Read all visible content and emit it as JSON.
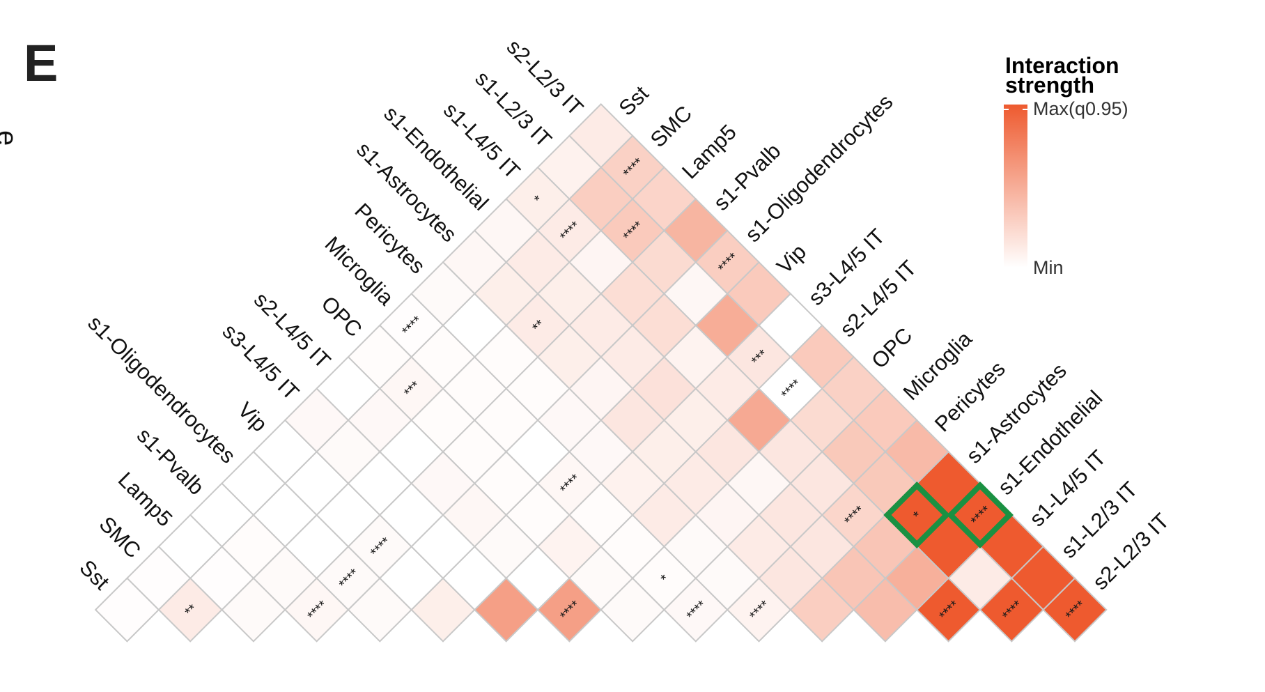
{
  "panel": {
    "letter": "E",
    "clipped_fragment": "e"
  },
  "chart_data": {
    "type": "heatmap",
    "layout": "lower-triangle rotated 45 degrees",
    "title": "",
    "cell_types": [
      "Sst",
      "SMC",
      "Lamp5",
      "s1-Pvalb",
      "s1-Oligodendrocytes",
      "Vip",
      "s3-L4/5 IT",
      "s2-L4/5 IT",
      "OPC",
      "Microglia",
      "Pericytes",
      "s1-Astrocytes",
      "s1-Endothelial",
      "s1-L4/5 IT",
      "s1-L2/3 IT",
      "s2-L2/3 IT"
    ],
    "value_scale": "relative interaction strength, 0 = Min, 1 = Max(q0.95)",
    "colors": {
      "min": "#ffffff",
      "max": "#ee5a2f",
      "grid": "#c8c8c8",
      "highlight": "#1a9142"
    },
    "cells": [
      {
        "i": 0,
        "j": 0,
        "v": 0.01,
        "sig": ""
      },
      {
        "i": 1,
        "j": 1,
        "v": 0.12,
        "sig": "**"
      },
      {
        "i": 2,
        "j": 2,
        "v": 0.03,
        "sig": ""
      },
      {
        "i": 3,
        "j": 3,
        "v": 0.05,
        "sig": "****"
      },
      {
        "i": 4,
        "j": 4,
        "v": 0.03,
        "sig": ""
      },
      {
        "i": 5,
        "j": 5,
        "v": 0.1,
        "sig": ""
      },
      {
        "i": 6,
        "j": 6,
        "v": 0.58,
        "sig": ""
      },
      {
        "i": 7,
        "j": 7,
        "v": 0.58,
        "sig": "****"
      },
      {
        "i": 8,
        "j": 8,
        "v": 0.03,
        "sig": ""
      },
      {
        "i": 9,
        "j": 9,
        "v": 0.04,
        "sig": "****"
      },
      {
        "i": 10,
        "j": 10,
        "v": 0.07,
        "sig": "****"
      },
      {
        "i": 11,
        "j": 11,
        "v": 0.3,
        "sig": ""
      },
      {
        "i": 12,
        "j": 12,
        "v": 0.4,
        "sig": ""
      },
      {
        "i": 13,
        "j": 13,
        "v": 1.0,
        "sig": "****"
      },
      {
        "i": 14,
        "j": 14,
        "v": 1.0,
        "sig": "****"
      },
      {
        "i": 15,
        "j": 15,
        "v": 1.0,
        "sig": "****"
      },
      {
        "i": 0,
        "j": 1,
        "v": 0.01,
        "sig": ""
      },
      {
        "i": 1,
        "j": 2,
        "v": 0.01,
        "sig": ""
      },
      {
        "i": 2,
        "j": 3,
        "v": 0.03,
        "sig": ""
      },
      {
        "i": 3,
        "j": 4,
        "v": 0.03,
        "sig": "****"
      },
      {
        "i": 4,
        "j": 5,
        "v": 0.0,
        "sig": ""
      },
      {
        "i": 5,
        "j": 6,
        "v": 0.0,
        "sig": ""
      },
      {
        "i": 6,
        "j": 7,
        "v": 0.0,
        "sig": ""
      },
      {
        "i": 7,
        "j": 8,
        "v": 0.03,
        "sig": ""
      },
      {
        "i": 8,
        "j": 9,
        "v": 0.02,
        "sig": "*"
      },
      {
        "i": 9,
        "j": 10,
        "v": 0.03,
        "sig": ""
      },
      {
        "i": 10,
        "j": 11,
        "v": 0.15,
        "sig": ""
      },
      {
        "i": 11,
        "j": 12,
        "v": 0.35,
        "sig": ""
      },
      {
        "i": 12,
        "j": 13,
        "v": 0.48,
        "sig": ""
      },
      {
        "i": 13,
        "j": 14,
        "v": 0.12,
        "sig": ""
      },
      {
        "i": 14,
        "j": 15,
        "v": 1.0,
        "sig": ""
      },
      {
        "i": 0,
        "j": 2,
        "v": 0.0,
        "sig": ""
      },
      {
        "i": 1,
        "j": 3,
        "v": 0.02,
        "sig": ""
      },
      {
        "i": 2,
        "j": 4,
        "v": 0.0,
        "sig": ""
      },
      {
        "i": 3,
        "j": 5,
        "v": 0.03,
        "sig": "****"
      },
      {
        "i": 4,
        "j": 6,
        "v": 0.0,
        "sig": ""
      },
      {
        "i": 5,
        "j": 7,
        "v": 0.03,
        "sig": ""
      },
      {
        "i": 6,
        "j": 8,
        "v": 0.07,
        "sig": ""
      },
      {
        "i": 7,
        "j": 9,
        "v": 0.02,
        "sig": ""
      },
      {
        "i": 8,
        "j": 10,
        "v": 0.03,
        "sig": ""
      },
      {
        "i": 9,
        "j": 11,
        "v": 0.12,
        "sig": ""
      },
      {
        "i": 10,
        "j": 12,
        "v": 0.15,
        "sig": ""
      },
      {
        "i": 11,
        "j": 13,
        "v": 0.35,
        "sig": ""
      },
      {
        "i": 12,
        "j": 14,
        "v": 1.0,
        "sig": ""
      },
      {
        "i": 13,
        "j": 15,
        "v": 1.0,
        "sig": ""
      },
      {
        "i": 0,
        "j": 3,
        "v": 0.0,
        "sig": ""
      },
      {
        "i": 1,
        "j": 4,
        "v": 0.0,
        "sig": ""
      },
      {
        "i": 2,
        "j": 5,
        "v": 0.0,
        "sig": ""
      },
      {
        "i": 3,
        "j": 6,
        "v": 0.0,
        "sig": ""
      },
      {
        "i": 4,
        "j": 7,
        "v": 0.05,
        "sig": ""
      },
      {
        "i": 5,
        "j": 8,
        "v": 0.02,
        "sig": ""
      },
      {
        "i": 6,
        "j": 9,
        "v": 0.02,
        "sig": ""
      },
      {
        "i": 7,
        "j": 10,
        "v": 0.12,
        "sig": ""
      },
      {
        "i": 8,
        "j": 11,
        "v": 0.06,
        "sig": ""
      },
      {
        "i": 9,
        "j": 12,
        "v": 0.15,
        "sig": ""
      },
      {
        "i": 10,
        "j": 13,
        "v": 0.25,
        "sig": "****"
      },
      {
        "i": 11,
        "j": 14,
        "v": 1.0,
        "sig": "*",
        "highlight": true
      },
      {
        "i": 12,
        "j": 15,
        "v": 1.0,
        "sig": "****",
        "highlight": true
      },
      {
        "i": 0,
        "j": 4,
        "v": 0.0,
        "sig": ""
      },
      {
        "i": 1,
        "j": 5,
        "v": 0.0,
        "sig": ""
      },
      {
        "i": 2,
        "j": 6,
        "v": 0.0,
        "sig": ""
      },
      {
        "i": 3,
        "j": 7,
        "v": 0.04,
        "sig": ""
      },
      {
        "i": 4,
        "j": 8,
        "v": 0.02,
        "sig": ""
      },
      {
        "i": 5,
        "j": 9,
        "v": 0.05,
        "sig": "****"
      },
      {
        "i": 6,
        "j": 10,
        "v": 0.08,
        "sig": ""
      },
      {
        "i": 7,
        "j": 11,
        "v": 0.12,
        "sig": ""
      },
      {
        "i": 8,
        "j": 12,
        "v": 0.05,
        "sig": ""
      },
      {
        "i": 9,
        "j": 13,
        "v": 0.15,
        "sig": ""
      },
      {
        "i": 10,
        "j": 14,
        "v": 0.33,
        "sig": ""
      },
      {
        "i": 11,
        "j": 15,
        "v": 1.0,
        "sig": ""
      },
      {
        "i": 0,
        "j": 5,
        "v": 0.0,
        "sig": ""
      },
      {
        "i": 1,
        "j": 6,
        "v": 0.03,
        "sig": ""
      },
      {
        "i": 2,
        "j": 7,
        "v": 0.0,
        "sig": ""
      },
      {
        "i": 3,
        "j": 8,
        "v": 0.02,
        "sig": ""
      },
      {
        "i": 4,
        "j": 9,
        "v": 0.0,
        "sig": ""
      },
      {
        "i": 5,
        "j": 10,
        "v": 0.04,
        "sig": ""
      },
      {
        "i": 6,
        "j": 11,
        "v": 0.1,
        "sig": ""
      },
      {
        "i": 7,
        "j": 12,
        "v": 0.15,
        "sig": ""
      },
      {
        "i": 8,
        "j": 13,
        "v": 0.15,
        "sig": ""
      },
      {
        "i": 9,
        "j": 14,
        "v": 0.33,
        "sig": ""
      },
      {
        "i": 10,
        "j": 15,
        "v": 0.42,
        "sig": ""
      },
      {
        "i": 0,
        "j": 6,
        "v": 0.04,
        "sig": ""
      },
      {
        "i": 1,
        "j": 7,
        "v": 0.04,
        "sig": ""
      },
      {
        "i": 2,
        "j": 8,
        "v": 0.02,
        "sig": ""
      },
      {
        "i": 3,
        "j": 9,
        "v": 0.02,
        "sig": ""
      },
      {
        "i": 4,
        "j": 10,
        "v": 0.04,
        "sig": ""
      },
      {
        "i": 5,
        "j": 11,
        "v": 0.15,
        "sig": ""
      },
      {
        "i": 6,
        "j": 12,
        "v": 0.1,
        "sig": ""
      },
      {
        "i": 7,
        "j": 13,
        "v": 0.52,
        "sig": ""
      },
      {
        "i": 8,
        "j": 14,
        "v": 0.22,
        "sig": ""
      },
      {
        "i": 9,
        "j": 15,
        "v": 0.32,
        "sig": ""
      },
      {
        "i": 0,
        "j": 7,
        "v": 0.0,
        "sig": ""
      },
      {
        "i": 1,
        "j": 8,
        "v": 0.05,
        "sig": "***"
      },
      {
        "i": 2,
        "j": 9,
        "v": 0.02,
        "sig": ""
      },
      {
        "i": 3,
        "j": 10,
        "v": 0.02,
        "sig": ""
      },
      {
        "i": 4,
        "j": 11,
        "v": 0.06,
        "sig": ""
      },
      {
        "i": 5,
        "j": 12,
        "v": 0.18,
        "sig": ""
      },
      {
        "i": 6,
        "j": 13,
        "v": 0.12,
        "sig": ""
      },
      {
        "i": 7,
        "j": 14,
        "v": 0.0,
        "sig": "****"
      },
      {
        "i": 8,
        "j": 15,
        "v": 0.28,
        "sig": ""
      },
      {
        "i": 0,
        "j": 8,
        "v": 0.02,
        "sig": ""
      },
      {
        "i": 1,
        "j": 9,
        "v": 0.02,
        "sig": ""
      },
      {
        "i": 2,
        "j": 10,
        "v": 0.02,
        "sig": ""
      },
      {
        "i": 3,
        "j": 11,
        "v": 0.1,
        "sig": ""
      },
      {
        "i": 4,
        "j": 12,
        "v": 0.12,
        "sig": ""
      },
      {
        "i": 5,
        "j": 13,
        "v": 0.07,
        "sig": ""
      },
      {
        "i": 6,
        "j": 14,
        "v": 0.15,
        "sig": "***"
      },
      {
        "i": 7,
        "j": 15,
        "v": 0.32,
        "sig": ""
      },
      {
        "i": 0,
        "j": 9,
        "v": 0.01,
        "sig": "****"
      },
      {
        "i": 1,
        "j": 10,
        "v": 0.0,
        "sig": ""
      },
      {
        "i": 2,
        "j": 11,
        "v": 0.12,
        "sig": "**"
      },
      {
        "i": 3,
        "j": 12,
        "v": 0.12,
        "sig": ""
      },
      {
        "i": 4,
        "j": 13,
        "v": 0.2,
        "sig": ""
      },
      {
        "i": 5,
        "j": 14,
        "v": 0.5,
        "sig": ""
      },
      {
        "i": 6,
        "j": 15,
        "v": 0.0,
        "sig": ""
      },
      {
        "i": 0,
        "j": 10,
        "v": 0.03,
        "sig": ""
      },
      {
        "i": 1,
        "j": 11,
        "v": 0.1,
        "sig": ""
      },
      {
        "i": 2,
        "j": 12,
        "v": 0.1,
        "sig": ""
      },
      {
        "i": 3,
        "j": 13,
        "v": 0.2,
        "sig": ""
      },
      {
        "i": 4,
        "j": 14,
        "v": 0.05,
        "sig": ""
      },
      {
        "i": 5,
        "j": 15,
        "v": 0.32,
        "sig": ""
      },
      {
        "i": 0,
        "j": 11,
        "v": 0.05,
        "sig": ""
      },
      {
        "i": 1,
        "j": 12,
        "v": 0.12,
        "sig": ""
      },
      {
        "i": 2,
        "j": 13,
        "v": 0.06,
        "sig": ""
      },
      {
        "i": 3,
        "j": 14,
        "v": 0.22,
        "sig": ""
      },
      {
        "i": 4,
        "j": 15,
        "v": 0.3,
        "sig": "****"
      },
      {
        "i": 0,
        "j": 12,
        "v": 0.05,
        "sig": ""
      },
      {
        "i": 1,
        "j": 13,
        "v": 0.12,
        "sig": "****"
      },
      {
        "i": 2,
        "j": 14,
        "v": 0.32,
        "sig": "****"
      },
      {
        "i": 3,
        "j": 15,
        "v": 0.45,
        "sig": ""
      },
      {
        "i": 0,
        "j": 13,
        "v": 0.1,
        "sig": "*"
      },
      {
        "i": 1,
        "j": 14,
        "v": 0.3,
        "sig": ""
      },
      {
        "i": 2,
        "j": 15,
        "v": 0.26,
        "sig": ""
      },
      {
        "i": 0,
        "j": 14,
        "v": 0.08,
        "sig": ""
      },
      {
        "i": 1,
        "j": 15,
        "v": 0.28,
        "sig": "****"
      },
      {
        "i": 0,
        "j": 15,
        "v": 0.12,
        "sig": ""
      }
    ],
    "legend": {
      "title_line1": "Interaction",
      "title_line2": "strength",
      "max_label": "Max(q0.95)",
      "min_label": "Min",
      "placement": "top-right"
    }
  }
}
